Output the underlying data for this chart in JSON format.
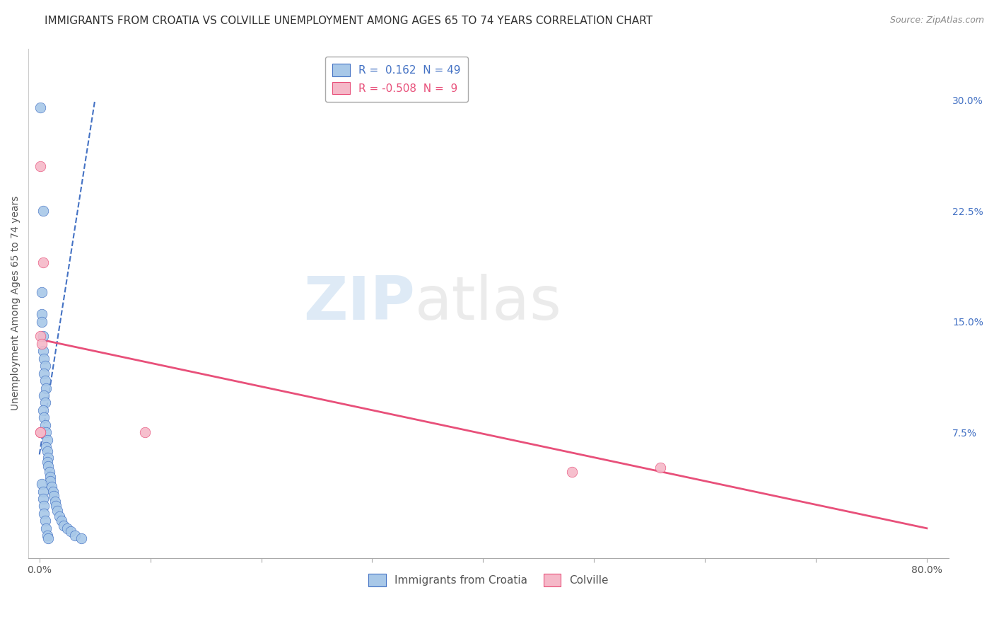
{
  "title": "IMMIGRANTS FROM CROATIA VS COLVILLE UNEMPLOYMENT AMONG AGES 65 TO 74 YEARS CORRELATION CHART",
  "source": "Source: ZipAtlas.com",
  "ylabel": "Unemployment Among Ages 65 to 74 years",
  "xlabel_ticks": [
    "0.0%",
    "",
    "",
    "",
    "",
    "",
    "",
    "",
    "80.0%"
  ],
  "xlabel_vals": [
    0.0,
    0.1,
    0.2,
    0.3,
    0.4,
    0.5,
    0.6,
    0.7,
    0.8
  ],
  "ylabel_ticks_right": [
    "30.0%",
    "22.5%",
    "15.0%",
    "7.5%"
  ],
  "ylabel_vals_right": [
    0.3,
    0.225,
    0.15,
    0.075
  ],
  "xlim": [
    -0.01,
    0.82
  ],
  "ylim": [
    -0.01,
    0.335
  ],
  "legend_blue_r": "0.162",
  "legend_blue_n": "49",
  "legend_pink_r": "-0.508",
  "legend_pink_n": "9",
  "legend_label_blue": "Immigrants from Croatia",
  "legend_label_pink": "Colville",
  "blue_color": "#a8c8e8",
  "pink_color": "#f5b8c8",
  "trendline_blue_color": "#4472c4",
  "trendline_pink_color": "#e8507a",
  "watermark_1": "ZIP",
  "watermark_2": "atlas",
  "blue_scatter_x": [
    0.001,
    0.003,
    0.002,
    0.002,
    0.002,
    0.003,
    0.003,
    0.004,
    0.005,
    0.004,
    0.005,
    0.006,
    0.004,
    0.005,
    0.003,
    0.004,
    0.005,
    0.006,
    0.007,
    0.006,
    0.007,
    0.008,
    0.007,
    0.008,
    0.009,
    0.01,
    0.01,
    0.011,
    0.012,
    0.013,
    0.014,
    0.015,
    0.016,
    0.018,
    0.02,
    0.022,
    0.025,
    0.028,
    0.032,
    0.038,
    0.002,
    0.003,
    0.003,
    0.004,
    0.004,
    0.005,
    0.006,
    0.007,
    0.008
  ],
  "blue_scatter_y": [
    0.295,
    0.225,
    0.17,
    0.155,
    0.15,
    0.14,
    0.13,
    0.125,
    0.12,
    0.115,
    0.11,
    0.105,
    0.1,
    0.095,
    0.09,
    0.085,
    0.08,
    0.075,
    0.07,
    0.065,
    0.062,
    0.058,
    0.055,
    0.052,
    0.048,
    0.045,
    0.042,
    0.038,
    0.035,
    0.032,
    0.028,
    0.025,
    0.022,
    0.018,
    0.015,
    0.012,
    0.01,
    0.008,
    0.005,
    0.003,
    0.04,
    0.035,
    0.03,
    0.025,
    0.02,
    0.015,
    0.01,
    0.005,
    0.003
  ],
  "pink_scatter_x": [
    0.001,
    0.003,
    0.001,
    0.002,
    0.001,
    0.095,
    0.001,
    0.48,
    0.56
  ],
  "pink_scatter_y": [
    0.255,
    0.19,
    0.14,
    0.135,
    0.075,
    0.075,
    0.075,
    0.048,
    0.051
  ],
  "blue_trend_x": [
    0.0,
    0.05
  ],
  "blue_trend_y": [
    0.06,
    0.3
  ],
  "pink_trend_x": [
    0.0,
    0.8
  ],
  "pink_trend_y": [
    0.138,
    0.01
  ],
  "grid_color": "#cccccc",
  "background_color": "#ffffff",
  "title_fontsize": 11,
  "source_fontsize": 9,
  "axis_label_fontsize": 10,
  "tick_fontsize": 10
}
